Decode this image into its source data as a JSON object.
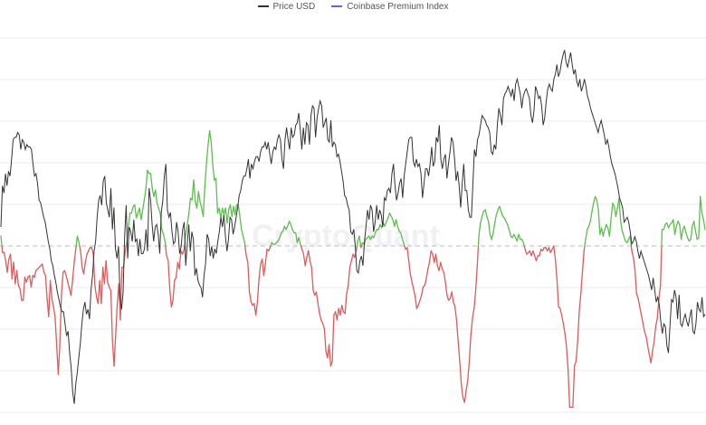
{
  "chart_data": {
    "type": "line",
    "watermark": "CryptoQuant",
    "series": [
      {
        "name": "Price USD",
        "color": "#333333",
        "values": [
          60,
          77,
          74,
          82,
          77,
          83,
          81,
          88,
          96,
          97,
          97,
          99,
          98,
          92,
          96,
          95,
          92,
          94,
          93,
          93,
          92,
          86,
          81,
          82,
          78,
          71,
          70,
          67,
          64,
          62,
          58,
          54,
          51,
          46,
          44,
          40,
          37,
          33,
          30,
          27,
          25,
          25,
          20,
          15,
          17,
          8,
          2,
          -8,
          -13,
          -5,
          0,
          6,
          12,
          20,
          26,
          29,
          24,
          26,
          22,
          34,
          40,
          50,
          54,
          64,
          71,
          73,
          69,
          79,
          81,
          70,
          67,
          64,
          76,
          59,
          68,
          51,
          47,
          52,
          31,
          26,
          33,
          56,
          69,
          47,
          60,
          58,
          54,
          63,
          54,
          55,
          48,
          55,
          49,
          49,
          51,
          59,
          50,
          76,
          71,
          61,
          54,
          60,
          61,
          57,
          49,
          66,
          71,
          81,
          86,
          67,
          64,
          66,
          58,
          53,
          54,
          62,
          58,
          49,
          52,
          59,
          62,
          44,
          53,
          61,
          50,
          58,
          55,
          40,
          43,
          38,
          36,
          35,
          31,
          40,
          45,
          57,
          55,
          48,
          52,
          47,
          51,
          49,
          54,
          58,
          64,
          60,
          65,
          56,
          50,
          55,
          64,
          63,
          57,
          60,
          64,
          68,
          73,
          75,
          79,
          81,
          81,
          84,
          88,
          80,
          86,
          84,
          87,
          89,
          89,
          87,
          91,
          93,
          93,
          95,
          92,
          95,
          90,
          86,
          91,
          93,
          92,
          96,
          98,
          96,
          88,
          84,
          96,
          101,
          96,
          92,
          101,
          97,
          98,
          102,
          103,
          107,
          100,
          92,
          101,
          94,
          103,
          102,
          94,
          106,
          110,
          109,
          97,
          105,
          109,
          112,
          110,
          101,
          103,
          105,
          96,
          95,
          104,
          93,
          95,
          94,
          89,
          90,
          87,
          83,
          79,
          73,
          72,
          69,
          67,
          58,
          57,
          59,
          52,
          42,
          41,
          46,
          48,
          44,
          54,
          60,
          67,
          63,
          69,
          67,
          58,
          62,
          69,
          63,
          67,
          65,
          60,
          72,
          71,
          75,
          76,
          74,
          82,
          86,
          77,
          71,
          74,
          78,
          80,
          72,
          81,
          86,
          91,
          96,
          97,
          97,
          87,
          85,
          88,
          85,
          86,
          82,
          72,
          78,
          84,
          84,
          81,
          86,
          93,
          85,
          87,
          97,
          95,
          102,
          88,
          84,
          88,
          90,
          80,
          86,
          91,
          97,
          95,
          88,
          79,
          83,
          77,
          68,
          78,
          86,
          75,
          75,
          67,
          64,
          64,
          78,
          92,
          89,
          96,
          98,
          102,
          106,
          105,
          104,
          102,
          101,
          99,
          91,
          90,
          94,
          92,
          102,
          109,
          106,
          102,
          113,
          115,
          116,
          118,
          116,
          114,
          117,
          112,
          119,
          121,
          118,
          115,
          109,
          114,
          116,
          117,
          115,
          113,
          106,
          103,
          108,
          118,
          116,
          113,
          114,
          110,
          102,
          105,
          112,
          117,
          119,
          117,
          116,
          121,
          123,
          127,
          122,
          124,
          128,
          131,
          133,
          128,
          126,
          129,
          132,
          127,
          123,
          125,
          120,
          118,
          121,
          116,
          118,
          121,
          118,
          114,
          112,
          109,
          107,
          105,
          103,
          101,
          99,
          102,
          104,
          101,
          98,
          94,
          96,
          93,
          89,
          86,
          84,
          82,
          79,
          76,
          72,
          70,
          68,
          62,
          63,
          64,
          62,
          58,
          53,
          54,
          56,
          54,
          50,
          47,
          50,
          48,
          46,
          44,
          42,
          40,
          37,
          34,
          39,
          34,
          29,
          31,
          28,
          21,
          16,
          20,
          19,
          11,
          8,
          19,
          30,
          29,
          34,
          31,
          22,
          32,
          20,
          19,
          22,
          24,
          21,
          19,
          23,
          26,
          17,
          16,
          20,
          29,
          26,
          25,
          31,
          23,
          24
        ]
      },
      {
        "name": "Coinbase Premium Index",
        "color": "#6b5cff",
        "values": [
          0.06,
          -0.04,
          -0.04,
          -0.09,
          -0.16,
          -0.08,
          -0.05,
          -0.2,
          -0.1,
          -0.23,
          -0.15,
          -0.24,
          -0.26,
          -0.33,
          -0.33,
          -0.19,
          -0.22,
          -0.19,
          -0.18,
          -0.25,
          -0.18,
          -0.19,
          -0.15,
          -0.14,
          -0.13,
          -0.12,
          -0.11,
          -0.16,
          -0.18,
          -0.32,
          -0.43,
          -0.21,
          -0.32,
          -0.37,
          -0.43,
          -0.6,
          -0.78,
          -0.6,
          -0.3,
          -0.16,
          -0.15,
          -0.18,
          -0.22,
          -0.26,
          -0.3,
          -0.21,
          -0.1,
          -0.02,
          0.06,
          0.02,
          -0.03,
          -0.13,
          -0.17,
          -0.1,
          -0.05,
          -0.03,
          -0.01,
          -0.01,
          -0.05,
          -0.24,
          -0.31,
          -0.35,
          -0.21,
          -0.35,
          -0.13,
          -0.23,
          -0.09,
          -0.22,
          -0.25,
          -0.27,
          -0.57,
          -0.73,
          -0.55,
          -0.36,
          -0.23,
          -0.45,
          -0.13,
          -0.13,
          -0.03,
          0.02,
          0.11,
          0.2,
          0.2,
          0.24,
          0.25,
          0.17,
          0.2,
          0.23,
          0.16,
          0.22,
          0.28,
          0.35,
          0.46,
          0.44,
          0.44,
          0.35,
          0.3,
          0.34,
          0.26,
          0.23,
          0.2,
          0.1,
          0.07,
          0.03,
          -0.06,
          -0.09,
          -0.26,
          -0.37,
          -0.33,
          -0.21,
          -0.19,
          -0.1,
          -0.14,
          -0.03,
          -0.05,
          -0.02,
          0.07,
          0.13,
          0.2,
          0.29,
          0.28,
          0.4,
          0.27,
          0.23,
          0.33,
          0.27,
          0.23,
          0.18,
          0.36,
          0.5,
          0.61,
          0.7,
          0.63,
          0.49,
          0.4,
          0.41,
          0.2,
          0.23,
          0.17,
          0.23,
          0.19,
          0.23,
          0.14,
          0.22,
          0.25,
          0.18,
          0.24,
          0.19,
          0.25,
          0.25,
          0.18,
          0.1,
          0.06,
          0.02,
          -0.06,
          -0.1,
          -0.28,
          -0.34,
          -0.36,
          -0.35,
          -0.42,
          -0.34,
          -0.2,
          -0.11,
          -0.08,
          -0.18,
          -0.11,
          -0.02,
          -0.03,
          -0.01,
          0.02,
          0.01,
          0.01,
          0.02,
          0.03,
          0.05,
          0.08,
          0.09,
          0.12,
          0.1,
          0.12,
          0.15,
          0.13,
          0.1,
          0.08,
          0.08,
          0.02,
          0.05,
          0.01,
          -0.02,
          -0.05,
          -0.12,
          -0.07,
          -0.03,
          -0.09,
          -0.13,
          -0.27,
          -0.3,
          -0.28,
          -0.35,
          -0.41,
          -0.45,
          -0.47,
          -0.5,
          -0.64,
          -0.68,
          -0.6,
          -0.73,
          -0.7,
          -0.42,
          -0.4,
          -0.45,
          -0.38,
          -0.42,
          -0.36,
          -0.4,
          -0.41,
          -0.29,
          -0.24,
          -0.13,
          -0.09,
          -0.05,
          -0.07,
          -0.03,
          0.03,
          0.06,
          -0.01,
          0.02,
          0.01,
          0.04,
          0.05,
          0.06,
          0.04,
          0.06,
          0.05,
          0.08,
          0.1,
          0.1,
          0.13,
          0.11,
          0.14,
          0.12,
          0.15,
          0.17,
          0.2,
          0.18,
          0.16,
          0.12,
          0.16,
          0.12,
          0.09,
          0.08,
          0.04,
          0.01,
          -0.02,
          -0.01,
          -0.09,
          -0.17,
          -0.22,
          -0.26,
          -0.31,
          -0.38,
          -0.36,
          -0.33,
          -0.3,
          -0.25,
          -0.24,
          -0.2,
          -0.14,
          -0.1,
          -0.03,
          -0.05,
          -0.1,
          -0.05,
          -0.12,
          -0.15,
          -0.1,
          -0.14,
          -0.16,
          -0.22,
          -0.3,
          -0.33,
          -0.32,
          -0.28,
          -0.34,
          -0.37,
          -0.45,
          -0.58,
          -0.7,
          -0.84,
          -0.92,
          -0.95,
          -0.88,
          -0.82,
          -0.7,
          -0.54,
          -0.44,
          -0.38,
          -0.27,
          -0.12,
          0.06,
          0.14,
          0.18,
          0.21,
          0.22,
          0.18,
          0.15,
          0.07,
          0.04,
          0.08,
          0.14,
          0.19,
          0.22,
          0.24,
          0.21,
          0.18,
          0.17,
          0.15,
          0.13,
          0.1,
          0.06,
          0.05,
          0.07,
          0.05,
          0.03,
          0.07,
          0.04,
          0.04,
          0.02,
          -0.02,
          -0.05,
          -0.04,
          -0.03,
          -0.06,
          -0.03,
          -0.06,
          -0.09,
          -0.06,
          -0.06,
          -0.02,
          -0.03,
          -0.01,
          -0.01,
          -0.03,
          -0.01,
          -0.04,
          -0.02,
          0.0,
          -0.08,
          -0.2,
          -0.37,
          -0.38,
          -0.42,
          -0.47,
          -0.53,
          -0.61,
          -0.75,
          -0.98,
          -0.98,
          -0.98,
          -0.73,
          -0.7,
          -0.58,
          -0.4,
          -0.29,
          -0.16,
          -0.03,
          0.04,
          0.1,
          0.12,
          0.15,
          0.21,
          0.26,
          0.3,
          0.28,
          0.22,
          0.07,
          0.11,
          0.06,
          0.1,
          0.13,
          0.11,
          0.06,
          0.17,
          0.26,
          0.24,
          0.18,
          0.23,
          0.29,
          0.15,
          0.09,
          0.06,
          0.03,
          0.02,
          0.04,
          0.06,
          -0.03,
          -0.07,
          -0.15,
          -0.29,
          -0.32,
          -0.37,
          -0.42,
          -0.47,
          -0.52,
          -0.55,
          -0.61,
          -0.66,
          -0.71,
          -0.64,
          -0.58,
          -0.49,
          -0.44,
          -0.32,
          -0.24,
          0.1,
          0.1,
          0.13,
          0.14,
          0.11,
          0.13,
          0.14,
          0.16,
          0.07,
          0.12,
          0.15,
          0.13,
          0.04,
          0.1,
          0.12,
          0.08,
          0.05,
          0.03,
          0.04,
          0.12,
          0.15,
          0.09,
          0.04,
          0.05,
          0.3,
          0.2,
          0.16,
          0.1
        ]
      }
    ],
    "premium_positive_color": "#5cbf4e",
    "premium_negative_color": "#e05a5a",
    "baseline_color": "#b9b9c6",
    "gridline_color": "#ebebeb"
  }
}
